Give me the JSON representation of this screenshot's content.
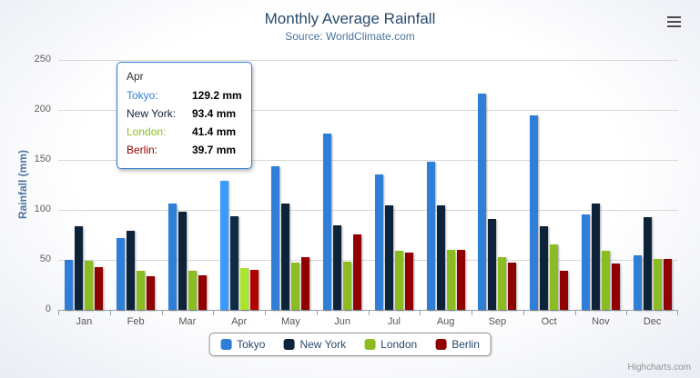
{
  "chart_data": {
    "type": "bar",
    "title": "Monthly Average Rainfall",
    "subtitle": "Source: WorldClimate.com",
    "xlabel": "",
    "ylabel": "Rainfall (mm)",
    "ylim": [
      0,
      250
    ],
    "ytick_interval": 50,
    "grid": true,
    "legend_position": "bottom",
    "categories": [
      "Jan",
      "Feb",
      "Mar",
      "Apr",
      "May",
      "Jun",
      "Jul",
      "Aug",
      "Sep",
      "Oct",
      "Nov",
      "Dec"
    ],
    "series": [
      {
        "name": "Tokyo",
        "color": "#2f7ed8",
        "values": [
          49.9,
          71.5,
          106.4,
          129.2,
          144.0,
          176.0,
          135.6,
          148.5,
          216.4,
          194.1,
          95.6,
          54.4
        ]
      },
      {
        "name": "New York",
        "color": "#0d233a",
        "values": [
          83.6,
          78.8,
          98.5,
          93.4,
          106.0,
          84.5,
          105.0,
          104.3,
          91.2,
          83.5,
          106.6,
          92.3
        ]
      },
      {
        "name": "London",
        "color": "#8bbc21",
        "values": [
          48.9,
          38.8,
          39.3,
          41.4,
          47.0,
          48.3,
          59.0,
          59.6,
          52.4,
          65.2,
          59.3,
          51.2
        ]
      },
      {
        "name": "Berlin",
        "color": "#910000",
        "values": [
          42.4,
          33.2,
          34.5,
          39.7,
          52.6,
          75.5,
          57.4,
          60.4,
          47.6,
          39.1,
          46.8,
          51.1
        ]
      }
    ]
  },
  "tooltip": {
    "header": "Apr",
    "rows": [
      {
        "label": "Tokyo:",
        "value": "129.2 mm",
        "color": "#2f7ed8"
      },
      {
        "label": "New York:",
        "value": "93.4 mm",
        "color": "#0d233a"
      },
      {
        "label": "London:",
        "value": "41.4 mm",
        "color": "#8bbc21"
      },
      {
        "label": "Berlin:",
        "value": "39.7 mm",
        "color": "#910000"
      }
    ]
  },
  "credits": "Highcharts.com"
}
